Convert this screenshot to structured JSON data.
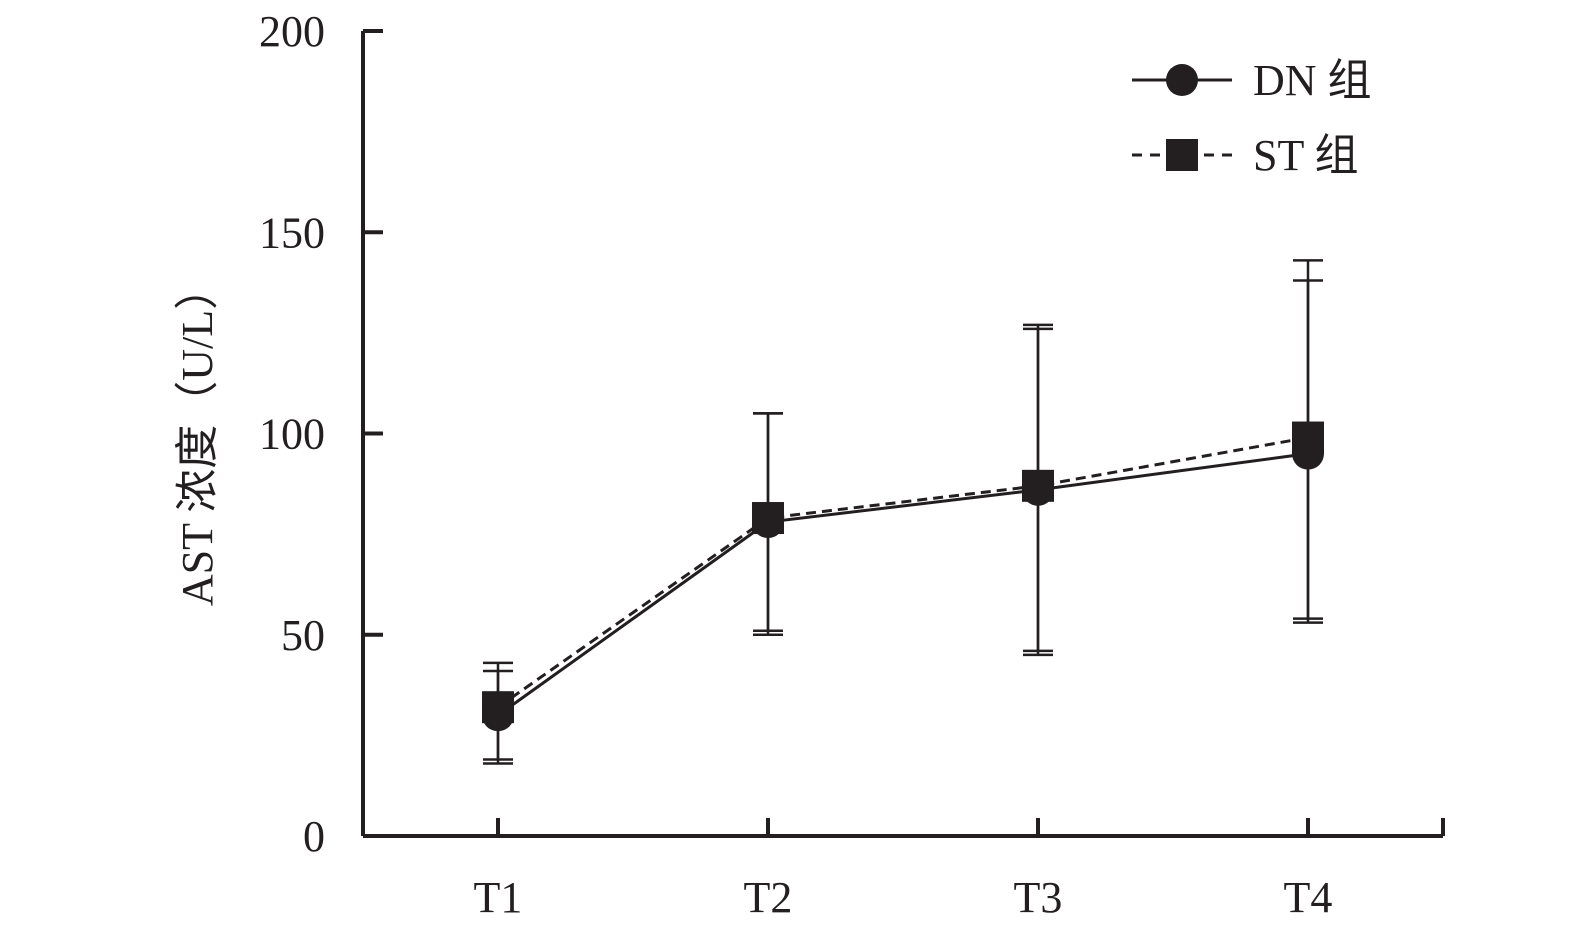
{
  "chart_data": {
    "type": "line",
    "title": "",
    "xlabel": "",
    "ylabel": "AST 浓度（U/L）",
    "categories": [
      "T1",
      "T2",
      "T3",
      "T4"
    ],
    "ylim": [
      0,
      200
    ],
    "yticks": [
      0,
      50,
      100,
      150,
      200
    ],
    "grid": false,
    "legend_position": "top-right",
    "series": [
      {
        "name": "DN 组",
        "line_style": "solid",
        "marker": "circle",
        "color": "#231f20",
        "values": [
          30,
          78,
          86,
          95
        ],
        "error_upper": [
          43,
          105,
          127,
          138
        ],
        "error_lower": [
          19,
          51,
          46,
          54
        ]
      },
      {
        "name": "ST 组",
        "line_style": "dashed",
        "marker": "square",
        "color": "#231f20",
        "values": [
          32,
          79,
          87,
          99
        ],
        "error_upper": [
          41,
          105,
          126,
          143
        ],
        "error_lower": [
          18,
          50,
          45,
          53
        ]
      }
    ]
  }
}
